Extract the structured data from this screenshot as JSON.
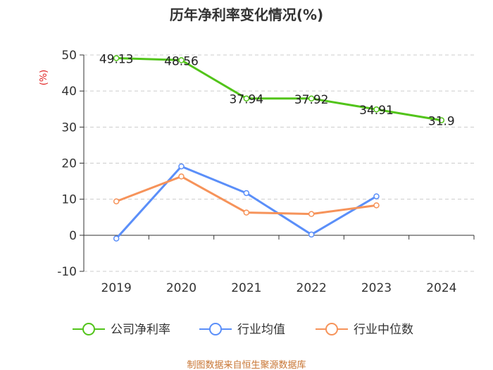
{
  "chart_data": {
    "type": "line",
    "title": "历年净利率变化情况(%)",
    "ylabel": "(%)",
    "xlabel": "",
    "categories": [
      "2019",
      "2020",
      "2021",
      "2022",
      "2023",
      "2024"
    ],
    "ylim": [
      -10,
      50
    ],
    "yticks": [
      -10,
      0,
      10,
      20,
      30,
      40,
      50
    ],
    "grid": true,
    "legend_position": "bottom",
    "series": [
      {
        "name": "公司净利率",
        "color": "#52c41a",
        "values": [
          49.13,
          48.56,
          37.94,
          37.92,
          34.91,
          31.9
        ],
        "labels": [
          "49.13",
          "48.56",
          "37.94",
          "37.92",
          "34.91",
          "31.9"
        ]
      },
      {
        "name": "行业均值",
        "color": "#5b8ff9",
        "values": [
          -0.9,
          19.1,
          11.7,
          0.2,
          10.8,
          null
        ]
      },
      {
        "name": "行业中位数",
        "color": "#f6935a",
        "values": [
          9.4,
          16.3,
          6.3,
          5.9,
          8.3,
          null
        ]
      }
    ]
  },
  "source_text": "制图数据来自恒生聚源数据库",
  "colors": {
    "axis": "#333333",
    "grid": "#cccccc",
    "ylabel": "#e02020",
    "source": "#c87533"
  }
}
